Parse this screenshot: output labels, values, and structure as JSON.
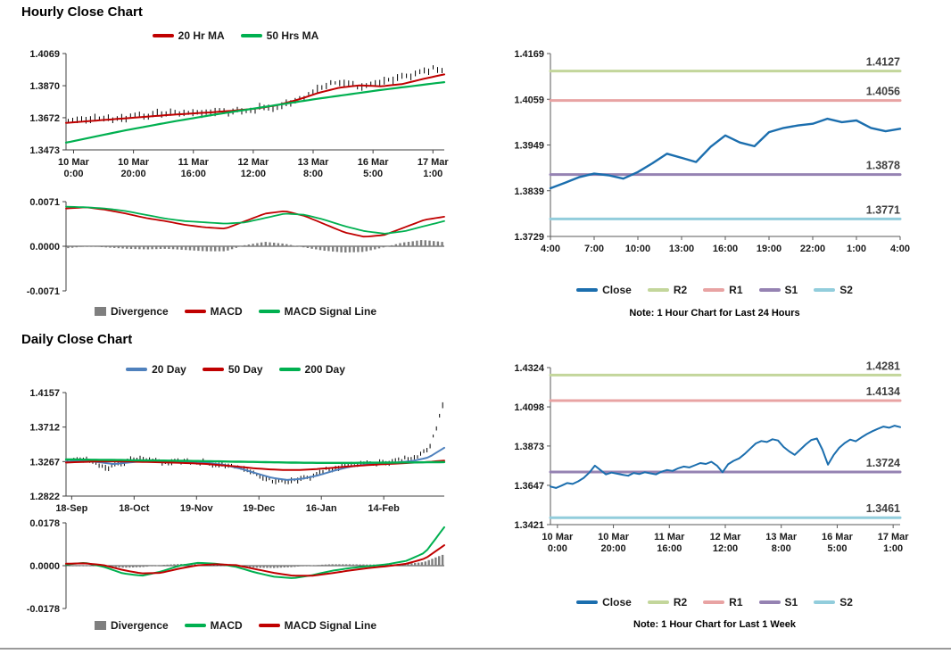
{
  "page": {
    "hourly_title": "Hourly Close Chart",
    "daily_title": "Daily Close Chart",
    "note_24h": "Note: 1 Hour Chart for Last 24 Hours",
    "note_1week": "Note: 1 Hour Chart for Last 1 Week"
  },
  "colors": {
    "ma_red": "#c00000",
    "ma_green": "#00b050",
    "ma_blue": "#4f81bd",
    "close_blue": "#1b6eae",
    "r2_green": "#c3d69b",
    "r1_pink": "#e8a3a3",
    "s1_purple": "#9582b2",
    "s2_lightblue": "#92cddc",
    "divergence_gray": "#7f7f7f",
    "candle_black": "#000000"
  },
  "legends": {
    "hourly_ma": {
      "items": [
        {
          "label": "20 Hr MA",
          "color": "#c00000",
          "shape": "line"
        },
        {
          "label": "50 Hrs MA",
          "color": "#00b050",
          "shape": "line"
        }
      ]
    },
    "hourly_macd": {
      "items": [
        {
          "label": "Divergence",
          "color": "#7f7f7f",
          "shape": "box"
        },
        {
          "label": "MACD",
          "color": "#c00000",
          "shape": "line"
        },
        {
          "label": "MACD Signal Line",
          "color": "#00b050",
          "shape": "line"
        }
      ]
    },
    "daily_ma": {
      "items": [
        {
          "label": "20 Day",
          "color": "#4f81bd",
          "shape": "line"
        },
        {
          "label": "50 Day",
          "color": "#c00000",
          "shape": "line"
        },
        {
          "label": "200 Day",
          "color": "#00b050",
          "shape": "line"
        }
      ]
    },
    "daily_macd": {
      "items": [
        {
          "label": "Divergence",
          "color": "#7f7f7f",
          "shape": "box"
        },
        {
          "label": "MACD",
          "color": "#00b050",
          "shape": "line"
        },
        {
          "label": "MACD Signal Line",
          "color": "#c00000",
          "shape": "line"
        }
      ]
    },
    "pivot_24h": {
      "items": [
        {
          "label": "Close",
          "color": "#1b6eae",
          "shape": "line"
        },
        {
          "label": "R2",
          "color": "#c3d69b",
          "shape": "line"
        },
        {
          "label": "R1",
          "color": "#e8a3a3",
          "shape": "line"
        },
        {
          "label": "S1",
          "color": "#9582b2",
          "shape": "line"
        },
        {
          "label": "S2",
          "color": "#92cddc",
          "shape": "line"
        }
      ]
    },
    "pivot_1week": {
      "items": [
        {
          "label": "Close",
          "color": "#1b6eae",
          "shape": "line"
        },
        {
          "label": "R2",
          "color": "#c3d69b",
          "shape": "line"
        },
        {
          "label": "R1",
          "color": "#e8a3a3",
          "shape": "line"
        },
        {
          "label": "S1",
          "color": "#9582b2",
          "shape": "line"
        },
        {
          "label": "S2",
          "color": "#92cddc",
          "shape": "line"
        }
      ]
    }
  },
  "chart_data": {
    "hourly_price": {
      "type": "candlestick",
      "title": "Hourly Close Chart",
      "ylim": [
        1.3473,
        1.4069
      ],
      "yticks": [
        1.3473,
        1.3672,
        1.387,
        1.4069
      ],
      "ydecimals": 4,
      "axis_color": "#404040",
      "xlabels": [
        [
          "10 Mar",
          "0:00"
        ],
        [
          "10 Mar",
          "20:00"
        ],
        [
          "11 Mar",
          "16:00"
        ],
        [
          "12 Mar",
          "12:00"
        ],
        [
          "13 Mar",
          "8:00"
        ],
        [
          "16 Mar",
          "5:00"
        ],
        [
          "17 Mar",
          "1:00"
        ]
      ],
      "xlabel_span": [
        0.02,
        0.97
      ],
      "candles": {
        "keypoints": [
          1.3655,
          1.3662,
          1.367,
          1.3668,
          1.368,
          1.3695,
          1.369,
          1.37,
          1.3698,
          1.371,
          1.3705,
          1.3718,
          1.3725,
          1.374,
          1.3762,
          1.38,
          1.3852,
          1.3886,
          1.388,
          1.3858,
          1.3886,
          1.3912,
          1.394,
          1.3962,
          1.398
        ],
        "n": 85,
        "amp": 0.0026
      },
      "series": [
        {
          "name": "20 Hr MA",
          "kind": "line",
          "color": "#c00000",
          "width": 2,
          "keypoints": [
            1.364,
            1.365,
            1.366,
            1.367,
            1.368,
            1.369,
            1.3698,
            1.3706,
            1.3716,
            1.3728,
            1.3748,
            1.3782,
            1.3825,
            1.3858,
            1.3872,
            1.3866,
            1.388,
            1.3912,
            1.394
          ]
        },
        {
          "name": "50 Hrs MA",
          "kind": "line",
          "color": "#00b050",
          "width": 2.2,
          "keypoints": [
            1.3518,
            1.3545,
            1.3572,
            1.3598,
            1.3622,
            1.3646,
            1.3668,
            1.369,
            1.371,
            1.373,
            1.375,
            1.377,
            1.379,
            1.3808,
            1.3826,
            1.3844,
            1.386,
            1.3876,
            1.3892
          ]
        }
      ]
    },
    "hourly_macd": {
      "type": "macd",
      "ylim": [
        -0.0071,
        0.0071
      ],
      "yticks": [
        -0.0071,
        0.0,
        0.0071
      ],
      "ydecimals": 4,
      "axis_color": "#404040",
      "zero_axis": true,
      "divergence": {
        "color": "#7f7f7f",
        "n": 90,
        "scale": 1
      },
      "series": [
        {
          "name": "MACD",
          "kind": "line",
          "color": "#c00000",
          "width": 1.8,
          "keypoints": [
            0.006,
            0.0062,
            0.0058,
            0.0052,
            0.0045,
            0.004,
            0.0034,
            0.003,
            0.0028,
            0.004,
            0.0052,
            0.0056,
            0.0048,
            0.0035,
            0.0022,
            0.0015,
            0.0018,
            0.003,
            0.0042,
            0.0047
          ]
        },
        {
          "name": "MACD Signal Line",
          "kind": "line",
          "color": "#00b050",
          "width": 1.8,
          "keypoints": [
            0.0063,
            0.0062,
            0.006,
            0.0056,
            0.005,
            0.0044,
            0.004,
            0.0038,
            0.0036,
            0.0038,
            0.0045,
            0.0052,
            0.005,
            0.0042,
            0.0032,
            0.0024,
            0.002,
            0.0024,
            0.0032,
            0.004
          ]
        }
      ]
    },
    "daily_price": {
      "type": "candlestick",
      "title": "Daily Close Chart",
      "ylim": [
        1.2822,
        1.4157
      ],
      "yticks": [
        1.2822,
        1.3267,
        1.3712,
        1.4157
      ],
      "ydecimals": 4,
      "axis_color": "#404040",
      "xlabels": [
        "18-Sep",
        "18-Oct",
        "19-Nov",
        "19-Dec",
        "16-Jan",
        "14-Feb"
      ],
      "xlabel_span": [
        0.015,
        0.84
      ],
      "candles": {
        "keypoints": [
          1.327,
          1.33,
          1.327,
          1.3185,
          1.325,
          1.3285,
          1.3295,
          1.327,
          1.326,
          1.3278,
          1.3262,
          1.3248,
          1.3232,
          1.3215,
          1.315,
          1.306,
          1.301,
          1.3,
          1.3042,
          1.3085,
          1.316,
          1.32,
          1.3228,
          1.3238,
          1.3248,
          1.3262,
          1.3292,
          1.3325,
          1.343,
          1.399
        ],
        "n": 120,
        "amp": 0.004
      },
      "series": [
        {
          "name": "20 Day",
          "kind": "line",
          "color": "#4f81bd",
          "width": 2,
          "keypoints": [
            1.3265,
            1.328,
            1.3262,
            1.3235,
            1.3255,
            1.3272,
            1.3268,
            1.3262,
            1.3255,
            1.3248,
            1.3225,
            1.318,
            1.312,
            1.306,
            1.303,
            1.3045,
            1.309,
            1.315,
            1.32,
            1.3228,
            1.3242,
            1.3255,
            1.3275,
            1.332,
            1.3445
          ]
        },
        {
          "name": "50 Day",
          "kind": "line",
          "color": "#c00000",
          "width": 2,
          "keypoints": [
            1.3255,
            1.3262,
            1.3268,
            1.327,
            1.3268,
            1.3262,
            1.3258,
            1.3252,
            1.3245,
            1.3235,
            1.3218,
            1.32,
            1.318,
            1.3165,
            1.3158,
            1.316,
            1.3172,
            1.3188,
            1.3205,
            1.322,
            1.3232,
            1.3242,
            1.3252,
            1.3262,
            1.328
          ]
        },
        {
          "name": "200 Day",
          "kind": "line",
          "color": "#00b050",
          "width": 2.4,
          "keypoints": [
            1.3295,
            1.3292,
            1.329,
            1.3288,
            1.3285,
            1.3282,
            1.328,
            1.3278,
            1.3275,
            1.3272,
            1.3268,
            1.3265,
            1.3262,
            1.3258,
            1.3255,
            1.3252,
            1.325,
            1.325,
            1.325,
            1.3252,
            1.3253,
            1.3255,
            1.3256,
            1.3258,
            1.326
          ]
        }
      ]
    },
    "daily_macd": {
      "type": "macd",
      "ylim": [
        -0.0178,
        0.0178
      ],
      "yticks": [
        -0.0178,
        0.0,
        0.0178
      ],
      "ydecimals": 4,
      "axis_color": "#404040",
      "zero_axis": true,
      "divergence": {
        "color": "#7f7f7f",
        "n": 110,
        "scale": 0.6
      },
      "series": [
        {
          "name": "MACD",
          "kind": "line",
          "color": "#00b050",
          "width": 2,
          "keypoints": [
            0.0005,
            0.0012,
            -0.0005,
            -0.0032,
            -0.0042,
            -0.0025,
            0.0,
            0.0012,
            0.0008,
            -0.0005,
            -0.0028,
            -0.0046,
            -0.0052,
            -0.004,
            -0.0022,
            -0.001,
            -0.0002,
            0.0006,
            0.002,
            0.0055,
            0.016
          ]
        },
        {
          "name": "MACD Signal Line",
          "kind": "line",
          "color": "#c00000",
          "width": 2,
          "keypoints": [
            0.0008,
            0.001,
            0.0002,
            -0.0018,
            -0.0032,
            -0.003,
            -0.0012,
            0.0002,
            0.0006,
            0.0002,
            -0.0014,
            -0.003,
            -0.0042,
            -0.0042,
            -0.0032,
            -0.002,
            -0.001,
            -0.0002,
            0.0008,
            0.003,
            0.0085
          ]
        }
      ]
    },
    "pivot_24h": {
      "type": "line",
      "note": "Note: 1 Hour Chart for Last 24 Hours",
      "ylim": [
        1.3729,
        1.4169
      ],
      "yticks": [
        1.3729,
        1.3839,
        1.3949,
        1.4059,
        1.4169
      ],
      "ydecimals": 4,
      "axis_color": "#595959",
      "xlabels": [
        "4:00",
        "7:00",
        "10:00",
        "13:00",
        "16:00",
        "19:00",
        "22:00",
        "1:00",
        "4:00"
      ],
      "xlabel_span": [
        0,
        1
      ],
      "levels": [
        {
          "name": "R2",
          "value": 1.4127,
          "label": "1.4127",
          "color": "#c3d69b"
        },
        {
          "name": "R1",
          "value": 1.4056,
          "label": "1.4056",
          "color": "#e8a3a3"
        },
        {
          "name": "S1",
          "value": 1.3878,
          "label": "1.3878",
          "color": "#9582b2"
        },
        {
          "name": "S2",
          "value": 1.3771,
          "label": "1.3771",
          "color": "#92cddc"
        }
      ],
      "series": [
        {
          "name": "Close",
          "kind": "line",
          "color": "#1b6eae",
          "width": 2.4,
          "values": [
            1.3845,
            1.3858,
            1.3872,
            1.388,
            1.3876,
            1.3868,
            1.3884,
            1.3905,
            1.3928,
            1.3918,
            1.3908,
            1.3945,
            1.3972,
            1.3955,
            1.3946,
            1.398,
            1.399,
            1.3996,
            1.4,
            1.4012,
            1.4004,
            1.4008,
            1.399,
            1.3982,
            1.3988
          ]
        }
      ]
    },
    "pivot_1week": {
      "type": "line",
      "note": "Note: 1 Hour Chart for Last 1 Week",
      "ylim": [
        1.3421,
        1.4324
      ],
      "yticks": [
        1.3421,
        1.3647,
        1.3873,
        1.4098,
        1.4324
      ],
      "ydecimals": 4,
      "axis_color": "#595959",
      "xlabels": [
        [
          "10 Mar",
          "0:00"
        ],
        [
          "10 Mar",
          "20:00"
        ],
        [
          "11 Mar",
          "16:00"
        ],
        [
          "12 Mar",
          "12:00"
        ],
        [
          "13 Mar",
          "8:00"
        ],
        [
          "16 Mar",
          "5:00"
        ],
        [
          "17 Mar",
          "1:00"
        ]
      ],
      "xlabel_span": [
        0.02,
        0.98
      ],
      "levels": [
        {
          "name": "R2",
          "value": 1.4281,
          "label": "1.4281",
          "color": "#c3d69b"
        },
        {
          "name": "R1",
          "value": 1.4134,
          "label": "1.4134",
          "color": "#e8a3a3"
        },
        {
          "name": "S1",
          "value": 1.3724,
          "label": "1.3724",
          "color": "#9582b2"
        },
        {
          "name": "S2",
          "value": 1.3461,
          "label": "1.3461",
          "color": "#92cddc"
        }
      ],
      "series": [
        {
          "name": "Close",
          "kind": "line",
          "color": "#1b6eae",
          "width": 2,
          "values": [
            1.364,
            1.3632,
            1.3645,
            1.366,
            1.3655,
            1.367,
            1.369,
            1.372,
            1.376,
            1.3735,
            1.371,
            1.372,
            1.3714,
            1.3708,
            1.3702,
            1.3718,
            1.3712,
            1.3722,
            1.3716,
            1.371,
            1.3725,
            1.3735,
            1.373,
            1.3745,
            1.3755,
            1.375,
            1.3762,
            1.3775,
            1.377,
            1.3782,
            1.376,
            1.3722,
            1.3768,
            1.3788,
            1.3802,
            1.3828,
            1.3858,
            1.3888,
            1.3902,
            1.3896,
            1.3912,
            1.3905,
            1.3868,
            1.3842,
            1.3822,
            1.3852,
            1.3882,
            1.3908,
            1.3916,
            1.3852,
            1.3766,
            1.382,
            1.3862,
            1.389,
            1.391,
            1.39,
            1.3922,
            1.3942,
            1.3958,
            1.3972,
            1.3985,
            1.3978,
            1.399,
            1.3982
          ]
        }
      ]
    }
  }
}
